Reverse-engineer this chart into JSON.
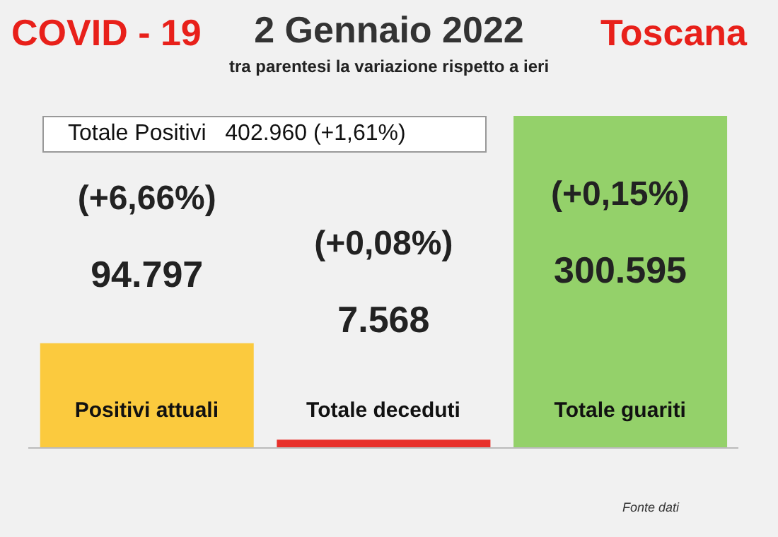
{
  "chart_data": {
    "type": "bar",
    "title": "2 Gennaio 2022",
    "subtitle": "tra parentesi la variazione rispetto a ieri",
    "categories": [
      "Positivi attuali",
      "Totale deceduti",
      "Totale guariti"
    ],
    "values": [
      94797,
      7568,
      300595
    ],
    "colors": [
      "#fbca3e",
      "#e8302a",
      "#94d16a"
    ],
    "value_labels": [
      "94.797",
      "7.568",
      "300.595"
    ],
    "annotations": [
      "COVID - 19",
      "Toscana",
      "Totale Positivi   402.960 (+1,61%)",
      "(+6,66%)",
      "(+0,08%)",
      "(+0,15%)",
      "Fonte dati"
    ],
    "grid": false,
    "legend": false
  }
}
